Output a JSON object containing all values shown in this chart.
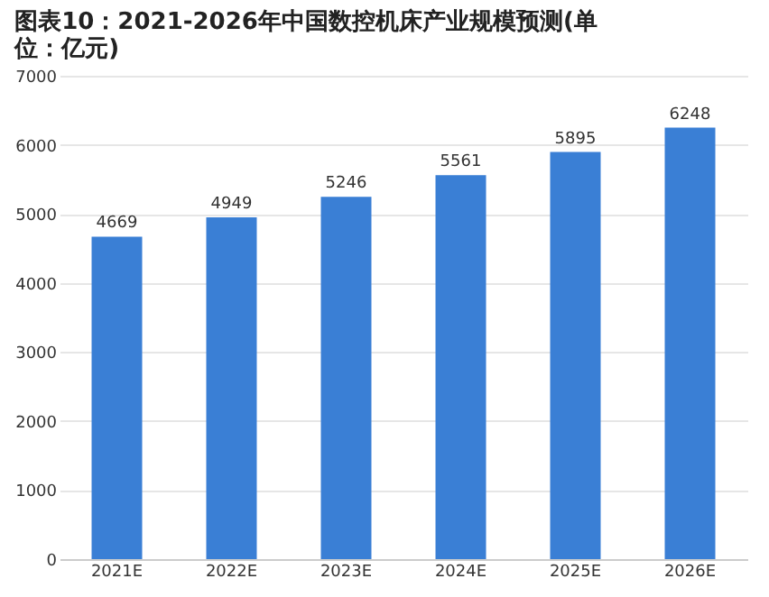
{
  "chart_data": {
    "type": "bar",
    "title": "图表10：2021-2026年中国数控机床产业规模预测(单位：亿元)",
    "categories": [
      "2021E",
      "2022E",
      "2023E",
      "2024E",
      "2025E",
      "2026E"
    ],
    "values": [
      4669,
      4949,
      5246,
      5561,
      5895,
      6248
    ],
    "color": "#3a7fd5",
    "ylim": [
      0,
      7000
    ],
    "yticks": [
      0,
      1000,
      2000,
      3000,
      4000,
      5000,
      6000,
      7000
    ],
    "grid": "y",
    "data_labels": true
  }
}
